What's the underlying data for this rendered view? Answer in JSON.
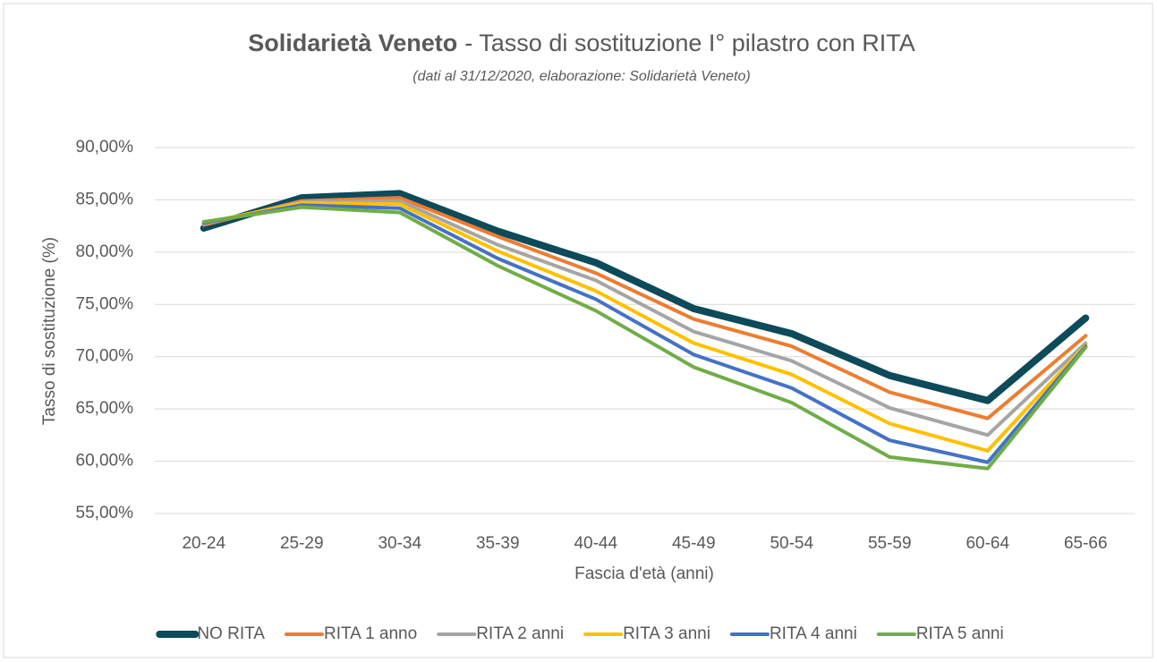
{
  "chart_data": {
    "type": "line",
    "title": [
      "Solidarietà Veneto",
      "- Tasso di sostituzione I° pilastro con RITA"
    ],
    "subtitle": "(dati al 31/12/2020, elaborazione: Solidarietà Veneto)",
    "x_label": "Fascia d'età (anni)",
    "y_label": "Tasso di sostituzione (%)",
    "categories": [
      "20-24",
      "25-29",
      "30-34",
      "35-39",
      "40-44",
      "45-49",
      "50-54",
      "55-59",
      "60-64",
      "65-66"
    ],
    "ylim": [
      55,
      90
    ],
    "yticks": [
      {
        "value": 55,
        "label": "55,00%"
      },
      {
        "value": 60,
        "label": "60,00%"
      },
      {
        "value": 65,
        "label": "65,00%"
      },
      {
        "value": 70,
        "label": "70,00%"
      },
      {
        "value": 75,
        "label": "75,00%"
      },
      {
        "value": 80,
        "label": "80,00%"
      },
      {
        "value": 85,
        "label": "85,00%"
      },
      {
        "value": 90,
        "label": "90,00%"
      }
    ],
    "grid": true,
    "legend": "bottom",
    "series": [
      {
        "name": "NO RITA",
        "color": "#0d4a5a",
        "line_width": 8,
        "values": [
          82.3,
          85.2,
          85.6,
          82.0,
          79.0,
          74.6,
          72.2,
          68.2,
          65.8,
          73.7
        ]
      },
      {
        "name": "RITA 1 anno",
        "color": "#ed7d31",
        "line_width": 4,
        "values": [
          82.6,
          84.9,
          85.2,
          81.5,
          78.0,
          73.6,
          71.0,
          66.6,
          64.1,
          72.0
        ]
      },
      {
        "name": "RITA 2 anni",
        "color": "#a5a5a5",
        "line_width": 4,
        "values": [
          82.7,
          84.8,
          84.9,
          80.7,
          77.3,
          72.4,
          69.6,
          65.1,
          62.5,
          71.3
        ]
      },
      {
        "name": "RITA 3 anni",
        "color": "#ffc000",
        "line_width": 4,
        "values": [
          82.8,
          84.7,
          84.6,
          80.1,
          76.3,
          71.3,
          68.3,
          63.6,
          61.0,
          71.1
        ]
      },
      {
        "name": "RITA 4 anni",
        "color": "#4472c4",
        "line_width": 4,
        "values": [
          82.8,
          84.5,
          84.2,
          79.4,
          75.5,
          70.2,
          67.0,
          62.0,
          59.9,
          71.0
        ]
      },
      {
        "name": "RITA 5 anni",
        "color": "#70ad47",
        "line_width": 4,
        "values": [
          82.9,
          84.3,
          83.8,
          78.7,
          74.4,
          69.0,
          65.6,
          60.4,
          59.3,
          70.9
        ]
      }
    ]
  }
}
